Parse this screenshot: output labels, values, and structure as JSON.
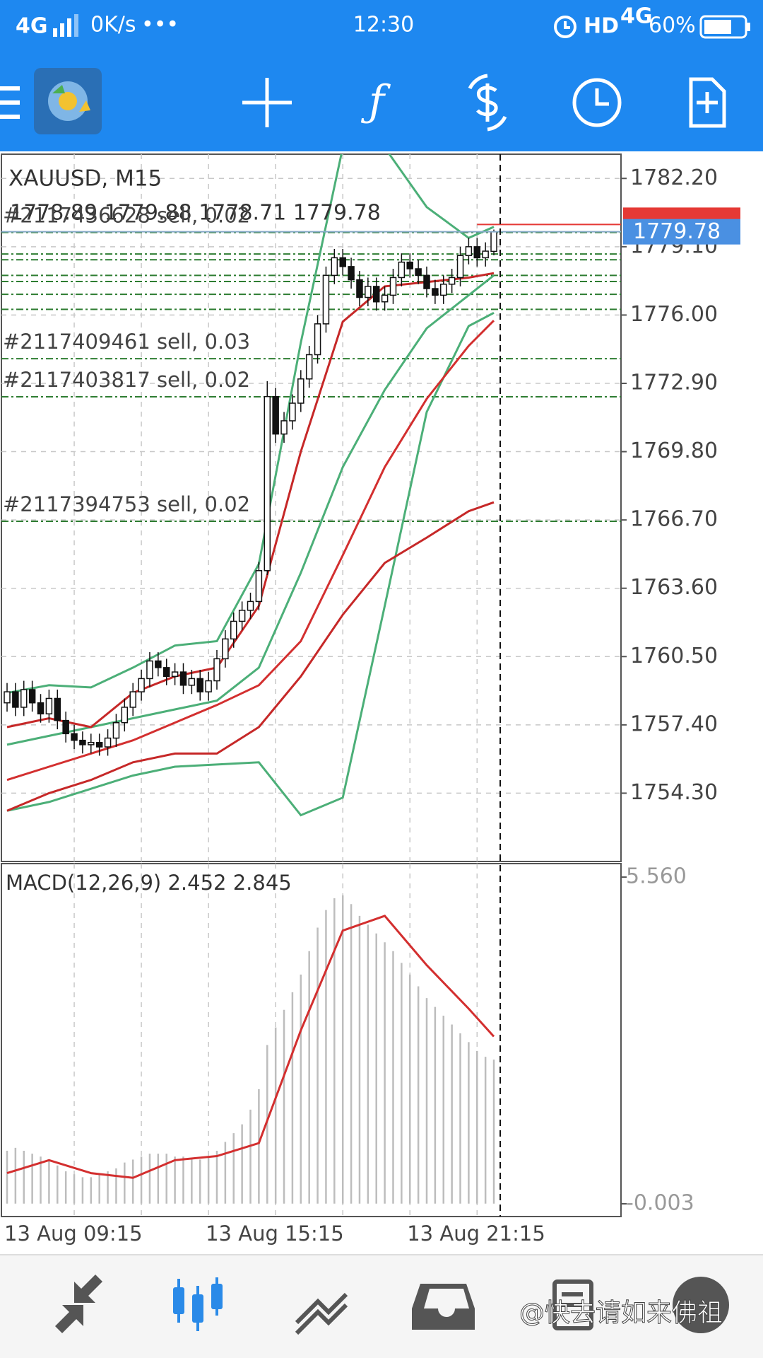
{
  "status_bar": {
    "network": "4G",
    "speed": "0K/s",
    "dots": "•••",
    "time": "12:30",
    "hd": "HD",
    "hd_network": "4G",
    "battery": "60%"
  },
  "watermark": "@快去请如来佛祖",
  "chart_data": [
    {
      "type": "candlestick",
      "title": "XAUUSD, M15",
      "ohlc_label": "1778.89 1779.88 1778.71 1779.78",
      "categories": [
        "13 Aug 09:15",
        null,
        null,
        null,
        null,
        null,
        null,
        null,
        null,
        null,
        null,
        null,
        null,
        null,
        null,
        null,
        null,
        null,
        null,
        null,
        null,
        null,
        null,
        null,
        "13 Aug 15:15",
        null,
        null,
        null,
        null,
        null,
        null,
        null,
        null,
        null,
        null,
        null,
        null,
        null,
        null,
        null,
        null,
        null,
        null,
        null,
        null,
        null,
        null,
        null,
        "13 Aug 21:15",
        null,
        null,
        null,
        null,
        null,
        null,
        null,
        null,
        null,
        null
      ],
      "open": [
        1758.4,
        1758.9,
        1758.2,
        1759.0,
        1758.4,
        1757.9,
        1758.6,
        1757.6,
        1757.0,
        1756.7,
        1756.5,
        1756.6,
        1756.4,
        1756.8,
        1757.5,
        1758.2,
        1758.9,
        1759.5,
        1760.3,
        1760.0,
        1759.6,
        1759.8,
        1759.2,
        1759.5,
        1758.9,
        1759.4,
        1760.4,
        1761.3,
        1762.1,
        1762.6,
        1763.0,
        1764.4,
        1772.3,
        1770.6,
        1771.2,
        1772.0,
        1773.1,
        1774.2,
        1775.6,
        1777.8,
        1778.6,
        1778.2,
        1777.6,
        1776.8,
        1777.3,
        1776.6,
        1776.9,
        1777.7,
        1778.4,
        1778.1,
        1777.8,
        1777.2,
        1776.9,
        1777.4,
        1777.7,
        1778.7,
        1779.1,
        1778.6,
        1778.89
      ],
      "high": [
        1759.3,
        1759.3,
        1759.4,
        1759.4,
        1758.8,
        1759.0,
        1759.0,
        1758.0,
        1757.4,
        1757.1,
        1757.0,
        1757.0,
        1757.2,
        1757.9,
        1758.6,
        1759.3,
        1759.9,
        1760.7,
        1760.7,
        1760.4,
        1760.2,
        1760.2,
        1759.9,
        1759.9,
        1759.8,
        1760.8,
        1761.7,
        1762.5,
        1763.0,
        1763.4,
        1764.8,
        1773.0,
        1772.7,
        1771.6,
        1772.4,
        1773.5,
        1774.6,
        1776.0,
        1778.2,
        1779.0,
        1779.0,
        1778.6,
        1778.0,
        1777.7,
        1777.7,
        1777.3,
        1778.1,
        1778.8,
        1778.8,
        1778.5,
        1778.2,
        1777.6,
        1777.8,
        1778.1,
        1779.1,
        1779.5,
        1779.5,
        1779.3,
        1779.88
      ],
      "low": [
        1758.0,
        1757.8,
        1757.8,
        1758.0,
        1757.5,
        1757.5,
        1757.2,
        1756.6,
        1756.3,
        1756.1,
        1756.1,
        1756.0,
        1756.0,
        1756.4,
        1757.1,
        1757.8,
        1758.5,
        1759.1,
        1759.6,
        1759.2,
        1759.2,
        1758.8,
        1758.8,
        1758.5,
        1758.5,
        1759.0,
        1760.0,
        1760.9,
        1761.7,
        1762.2,
        1762.6,
        1764.2,
        1770.2,
        1770.2,
        1770.8,
        1771.6,
        1772.7,
        1773.8,
        1775.2,
        1777.4,
        1777.8,
        1777.2,
        1776.4,
        1776.4,
        1776.2,
        1776.2,
        1776.5,
        1777.3,
        1777.7,
        1777.4,
        1776.8,
        1776.5,
        1776.5,
        1777.0,
        1777.3,
        1778.3,
        1778.2,
        1778.2,
        1778.71
      ],
      "close": [
        1758.9,
        1758.2,
        1759.0,
        1758.4,
        1757.9,
        1758.6,
        1757.6,
        1757.0,
        1756.7,
        1756.5,
        1756.6,
        1756.4,
        1756.8,
        1757.5,
        1758.2,
        1758.9,
        1759.5,
        1760.3,
        1760.0,
        1759.6,
        1759.8,
        1759.2,
        1759.5,
        1758.9,
        1759.4,
        1760.4,
        1761.3,
        1762.1,
        1762.6,
        1763.0,
        1764.4,
        1772.3,
        1770.6,
        1771.2,
        1772.0,
        1773.1,
        1774.2,
        1775.6,
        1777.8,
        1778.6,
        1778.2,
        1777.6,
        1776.8,
        1777.3,
        1776.6,
        1776.9,
        1777.7,
        1778.4,
        1778.1,
        1777.8,
        1777.2,
        1776.9,
        1777.4,
        1777.7,
        1778.7,
        1779.1,
        1778.6,
        1778.9,
        1779.78
      ],
      "series": [
        {
          "color": "#4caf78",
          "x": [
            0,
            5,
            10,
            15,
            20,
            25,
            30,
            35,
            40,
            45,
            50,
            55,
            58
          ],
          "values": [
            1758.85,
            1759.2,
            1759.1,
            1760.0,
            1761.0,
            1761.2,
            1764.7,
            1774.75,
            1783.6,
            1783.6,
            1780.9,
            1779.5,
            1780.0
          ]
        },
        {
          "color": "#4caf78",
          "x": [
            0,
            5,
            10,
            15,
            20,
            25,
            30,
            35,
            40,
            45,
            50,
            55,
            58
          ],
          "values": [
            1756.5,
            1756.9,
            1757.3,
            1757.7,
            1758.1,
            1758.5,
            1760.0,
            1764.3,
            1769.1,
            1772.6,
            1775.4,
            1776.9,
            1777.8
          ]
        },
        {
          "color": "#4caf78",
          "x": [
            0,
            5,
            10,
            15,
            20,
            25,
            30,
            35,
            40,
            45,
            50,
            55,
            58
          ],
          "values": [
            1753.5,
            1753.9,
            1754.5,
            1755.1,
            1755.5,
            1755.6,
            1755.7,
            1753.3,
            1754.1,
            1762.8,
            1771.6,
            1775.5,
            1776.1
          ]
        },
        {
          "color": "#d32f2f",
          "x": [
            0,
            5,
            10,
            15,
            20,
            25,
            30,
            35,
            40,
            45,
            50,
            55,
            58
          ],
          "values": [
            1754.9,
            1755.5,
            1756.1,
            1756.7,
            1757.5,
            1758.3,
            1759.2,
            1761.2,
            1765.1,
            1769.1,
            1772.2,
            1774.6,
            1775.75
          ]
        },
        {
          "color": "#c62828",
          "x": [
            0,
            5,
            10,
            15,
            20,
            25,
            30,
            35,
            40,
            45,
            50,
            55,
            58
          ],
          "values": [
            1753.5,
            1754.3,
            1754.9,
            1755.7,
            1756.1,
            1756.1,
            1757.3,
            1759.6,
            1762.4,
            1764.75,
            1765.9,
            1767.1,
            1767.5
          ]
        },
        {
          "color": "#c62828",
          "x": [
            0,
            5,
            10,
            15,
            20,
            25,
            30,
            35,
            40,
            45,
            50,
            55,
            58
          ],
          "values": [
            1757.3,
            1757.7,
            1757.3,
            1758.85,
            1759.6,
            1760.0,
            1762.8,
            1769.8,
            1775.7,
            1777.3,
            1777.5,
            1777.7,
            1777.9
          ]
        }
      ],
      "orders": [
        {
          "label": "#2117436628 sell, 0.02",
          "price": 1779.75
        },
        {
          "label": "#2117409461 sell, 0.03",
          "price": 1774.02
        },
        {
          "label": "#2117403817 sell, 0.02",
          "price": 1772.29
        },
        {
          "label": "#2117394753 sell, 0.02",
          "price": 1766.64
        }
      ],
      "order_levels": [
        1778.77,
        1778.51,
        1777.8,
        1777.52,
        1776.94,
        1776.26
      ],
      "order_color": "#2e7d32",
      "bid": 1779.78,
      "bid_color": "#4a90e2",
      "ask": 1780.11,
      "ask_color": "#e53935",
      "ylim": [
        1751.2,
        1783.3
      ],
      "yticks": [
        {
          "value": 1782.2,
          "label": "1782.20"
        },
        {
          "value": 1779.1,
          "label": "1779.10"
        },
        {
          "value": 1776.0,
          "label": "1776.00"
        },
        {
          "value": 1772.9,
          "label": "1772.90"
        },
        {
          "value": 1769.8,
          "label": "1769.80"
        },
        {
          "value": 1766.7,
          "label": "1766.70"
        },
        {
          "value": 1763.6,
          "label": "1763.60"
        },
        {
          "value": 1760.5,
          "label": "1760.50"
        },
        {
          "value": 1757.4,
          "label": "1757.40"
        },
        {
          "value": 1754.3,
          "label": "1754.30"
        }
      ],
      "grid": true
    },
    {
      "type": "bar",
      "title": "MACD(12,26,9) 2.452 2.845",
      "values": [
        0.9,
        0.95,
        0.9,
        0.85,
        0.8,
        0.75,
        0.65,
        0.55,
        0.5,
        0.45,
        0.45,
        0.5,
        0.55,
        0.6,
        0.7,
        0.75,
        0.8,
        0.85,
        0.85,
        0.85,
        0.8,
        0.8,
        0.75,
        0.75,
        0.8,
        0.9,
        1.05,
        1.2,
        1.35,
        1.6,
        1.95,
        2.7,
        3.0,
        3.3,
        3.6,
        3.9,
        4.3,
        4.7,
        5.0,
        5.2,
        5.25,
        5.1,
        4.9,
        4.75,
        4.6,
        4.45,
        4.3,
        4.1,
        3.9,
        3.7,
        3.5,
        3.35,
        3.2,
        3.05,
        2.9,
        2.75,
        2.6,
        2.5,
        2.452
      ],
      "color": "#bdbdbd",
      "signal": {
        "color": "#d32f2f",
        "x": [
          0,
          5,
          10,
          15,
          20,
          25,
          30,
          35,
          40,
          45,
          50,
          55,
          58
        ],
        "values": [
          0.52,
          0.74,
          0.52,
          0.44,
          0.74,
          0.81,
          1.03,
          2.95,
          4.65,
          4.9,
          4.06,
          3.32,
          2.845
        ]
      },
      "ylim": [
        -0.22,
        5.79
      ],
      "yticks": [
        {
          "value": 5.56,
          "label": "5.560"
        },
        -0.003
      ]
    }
  ]
}
